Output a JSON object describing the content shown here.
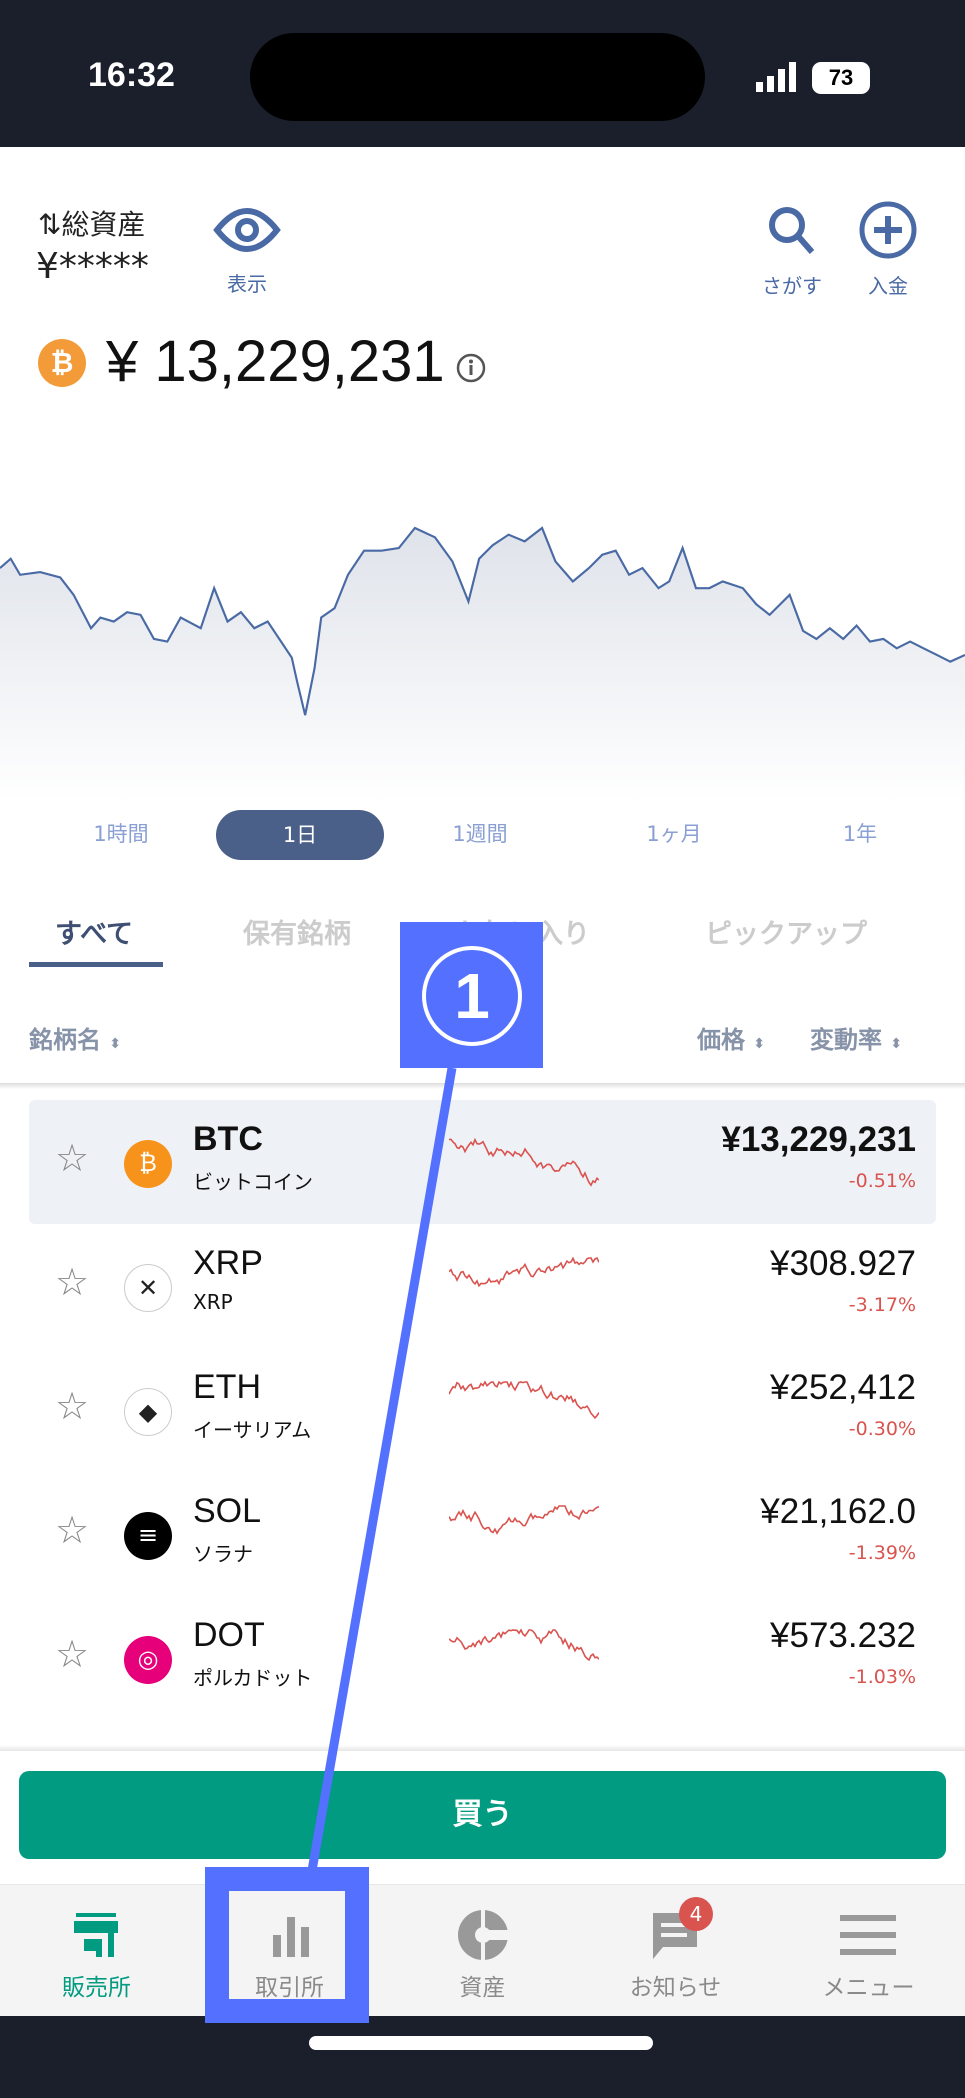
{
  "status_bar": {
    "time": "16:32",
    "battery": "73"
  },
  "header": {
    "total_assets_label": "総資産",
    "total_assets_value": "¥*****",
    "show_label": "表示",
    "search_label": "さがす",
    "deposit_label": "入金"
  },
  "featured": {
    "symbol": "BTC",
    "price": "¥ 13,229,231"
  },
  "time_ranges": {
    "items": [
      "1時間",
      "1日",
      "1週間",
      "1ヶ月",
      "1年"
    ],
    "selected": "1日"
  },
  "list_tabs": {
    "items": [
      "すべて",
      "保有銘柄",
      "お気に入り",
      "ピックアップ"
    ],
    "selected": "すべて"
  },
  "columns": {
    "name": "銘柄名",
    "price": "価格",
    "change": "変動率"
  },
  "coins": [
    {
      "symbol": "BTC",
      "name": "ビットコイン",
      "price": "¥13,229,231",
      "change": "-0.51%",
      "color": "#f7931a"
    },
    {
      "symbol": "XRP",
      "name": "XRP",
      "price": "¥308.927",
      "change": "-3.17%",
      "color": "#222222"
    },
    {
      "symbol": "ETH",
      "name": "イーサリアム",
      "price": "¥252,412",
      "change": "-0.30%",
      "color": "#333333"
    },
    {
      "symbol": "SOL",
      "name": "ソラナ",
      "price": "¥21,162.0",
      "change": "-1.39%",
      "color": "#000000"
    },
    {
      "symbol": "DOT",
      "name": "ポルカドット",
      "price": "¥573.232",
      "change": "-1.03%",
      "color": "#e6007a"
    }
  ],
  "buy_button": "買う",
  "bottom_nav": {
    "items": [
      {
        "label": "販売所",
        "icon": "store-icon",
        "active": true
      },
      {
        "label": "取引所",
        "icon": "bar-chart-icon",
        "active": false
      },
      {
        "label": "資産",
        "icon": "pie-icon",
        "active": false
      },
      {
        "label": "お知らせ",
        "icon": "message-icon",
        "active": false,
        "badge": "4"
      },
      {
        "label": "メニュー",
        "icon": "menu-icon",
        "active": false
      }
    ]
  },
  "annotation": {
    "number": "1",
    "color": "#5470ff"
  },
  "colors": {
    "accent": "#4b6089",
    "buy": "#009b80",
    "negative": "#d9534f"
  }
}
